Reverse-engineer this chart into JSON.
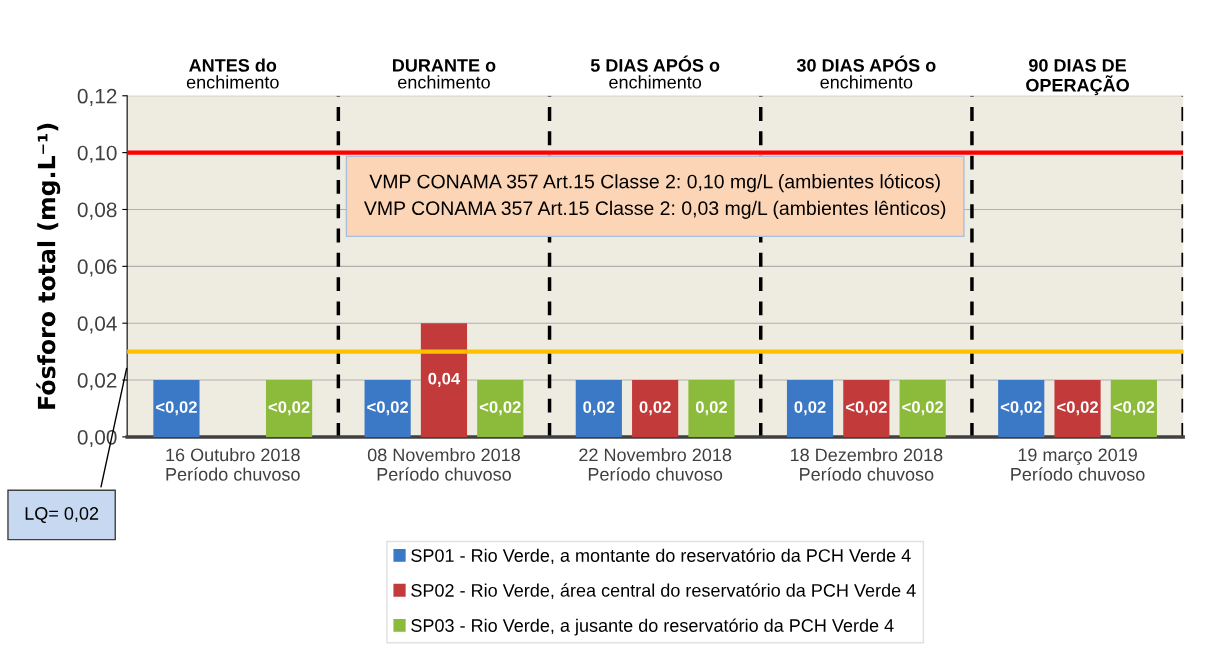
{
  "chart_data": {
    "type": "bar",
    "ylabel": "Fósforo total (mg.L⁻¹)",
    "categories": [
      "16 Outubro 2018\nPeríodo chuvoso",
      "08 Novembro 2018\nPeríodo chuvoso",
      "22 Novembro 2018\nPeríodo chuvoso",
      "18 Dezembro 2018\nPeríodo chuvoso",
      "19 março 2019\nPeríodo chuvoso"
    ],
    "series": [
      {
        "name": "SP01 - Rio Verde, a montante do reservatório da PCH Verde 4",
        "color": "#3b78c6",
        "values": [
          0.02,
          0.02,
          0.02,
          0.02,
          0.02
        ],
        "value_labels": [
          "<0,02",
          "<0,02",
          "0,02",
          "0,02",
          "<0,02"
        ]
      },
      {
        "name": "SP02 - Rio Verde, área central do reservatório da PCH Verde 4",
        "color": "#c23a3a",
        "values": [
          null,
          0.04,
          0.02,
          0.02,
          0.02
        ],
        "value_labels": [
          null,
          "0,04",
          "0,02",
          "<0,02",
          "<0,02"
        ]
      },
      {
        "name": "SP03 - Rio Verde, a jusante do reservatório da PCH Verde 4",
        "color": "#8cbb3c",
        "values": [
          0.02,
          0.02,
          0.02,
          0.02,
          0.02
        ],
        "value_labels": [
          "<0,02",
          "<0,02",
          "0,02",
          "<0,02",
          "<0,02"
        ]
      }
    ],
    "ylim": [
      0,
      0.12
    ],
    "yticks": [
      {
        "value": 0,
        "label": "0,00"
      },
      {
        "value": 0.02,
        "label": "0,02"
      },
      {
        "value": 0.04,
        "label": "0,04"
      },
      {
        "value": 0.06,
        "label": "0,06"
      },
      {
        "value": 0.08,
        "label": "0,08"
      },
      {
        "value": 0.1,
        "label": "0,10"
      },
      {
        "value": 0.12,
        "label": "0,12"
      }
    ],
    "grid": "y",
    "legend": "bottom",
    "ref_lines": [
      {
        "axis": "y",
        "value": 0.1,
        "color": "#ff0000",
        "line_style": "solid"
      },
      {
        "axis": "y",
        "value": 0.03,
        "color": "#ffc000",
        "line_style": "solid"
      }
    ],
    "annotations": [
      "ANTES do\nenchimento",
      "DURANTE o\nenchimento",
      "5 DIAS APÓS o\nenchimento",
      "30 DIAS APÓS o\nenchimento",
      "90 DIAS DE\nOPERAÇÃO",
      "VMP CONAMA 357 Art.15 Classe 2: 0,10 mg/L (ambientes lóticos)\nVMP CONAMA 357 Art.15 Classe 2: 0,03 mg/L (ambientes lênticos)",
      "LQ= 0,02"
    ]
  }
}
